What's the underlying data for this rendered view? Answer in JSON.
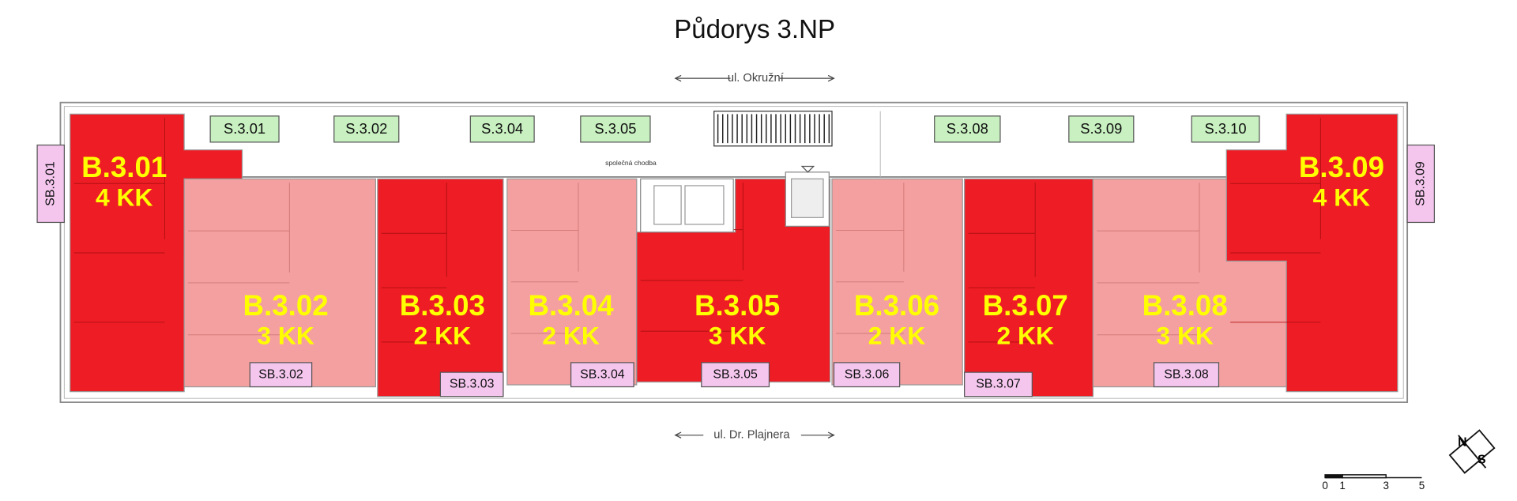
{
  "title": "Půdorys 3.NP",
  "streets": {
    "north": "ul. Okružní",
    "south": "ul. Dr. Plajnera"
  },
  "corridor": "společná chodba",
  "units": [
    {
      "id": "B.3.01",
      "type": "4 KK",
      "color": "#ee1c24"
    },
    {
      "id": "B.3.02",
      "type": "3 KK",
      "color": "#f5a0a0"
    },
    {
      "id": "B.3.03",
      "type": "2 KK",
      "color": "#ee1c24"
    },
    {
      "id": "B.3.04",
      "type": "2 KK",
      "color": "#f5a0a0"
    },
    {
      "id": "B.3.05",
      "type": "3 KK",
      "color": "#ee1c24"
    },
    {
      "id": "B.3.06",
      "type": "2 KK",
      "color": "#f5a0a0"
    },
    {
      "id": "B.3.07",
      "type": "2 KK",
      "color": "#ee1c24"
    },
    {
      "id": "B.3.08",
      "type": "3 KK",
      "color": "#f5a0a0"
    },
    {
      "id": "B.3.09",
      "type": "4 KK",
      "color": "#ee1c24"
    }
  ],
  "storage": [
    "S.3.01",
    "S.3.02",
    "S.3.04",
    "S.3.05",
    "S.3.08",
    "S.3.09",
    "S.3.10"
  ],
  "balconies": [
    "SB.3.01",
    "SB.3.02",
    "SB.3.03",
    "SB.3.04",
    "SB.3.05",
    "SB.3.06",
    "SB.3.07",
    "SB.3.08",
    "SB.3.09"
  ],
  "compass": {
    "north": "N",
    "south": "S"
  },
  "scale": [
    "0",
    "1",
    "3",
    "5"
  ]
}
